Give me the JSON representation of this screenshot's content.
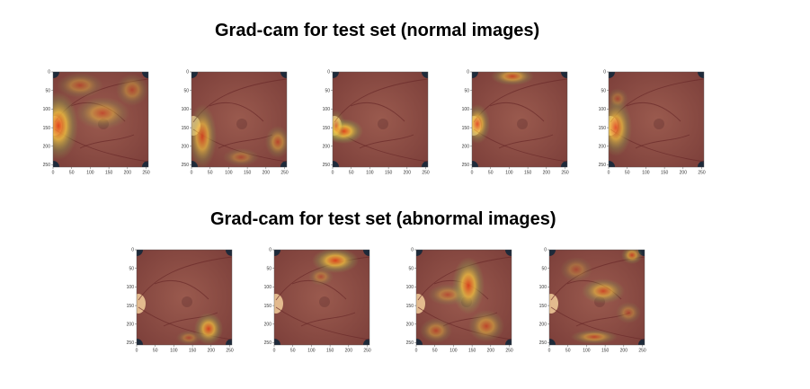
{
  "sections": [
    {
      "title": "Grad-cam for test set (normal images)",
      "panels": [
        {
          "heat": [
            {
              "cx": 6,
              "cy": 60,
              "rx": 22,
              "ry": 38,
              "a": 0.95
            },
            {
              "cx": 55,
              "cy": 46,
              "rx": 30,
              "ry": 18,
              "a": 0.55
            },
            {
              "cx": 88,
              "cy": 20,
              "rx": 18,
              "ry": 18,
              "a": 0.45
            },
            {
              "cx": 30,
              "cy": 15,
              "rx": 26,
              "ry": 14,
              "a": 0.45
            }
          ]
        },
        {
          "heat": [
            {
              "cx": 12,
              "cy": 72,
              "rx": 16,
              "ry": 36,
              "a": 0.8
            },
            {
              "cx": 96,
              "cy": 78,
              "rx": 14,
              "ry": 18,
              "a": 0.55
            },
            {
              "cx": 55,
              "cy": 95,
              "rx": 20,
              "ry": 10,
              "a": 0.4
            }
          ]
        },
        {
          "heat": [
            {
              "cx": 12,
              "cy": 66,
              "rx": 22,
              "ry": 14,
              "a": 1.0
            },
            {
              "cx": 4,
              "cy": 60,
              "rx": 10,
              "ry": 18,
              "a": 0.6
            }
          ]
        },
        {
          "heat": [
            {
              "cx": 6,
              "cy": 58,
              "rx": 14,
              "ry": 22,
              "a": 0.85
            },
            {
              "cx": 45,
              "cy": 5,
              "rx": 24,
              "ry": 10,
              "a": 0.7
            }
          ]
        },
        {
          "heat": [
            {
              "cx": 8,
              "cy": 62,
              "rx": 18,
              "ry": 32,
              "a": 0.85
            },
            {
              "cx": 10,
              "cy": 30,
              "rx": 12,
              "ry": 12,
              "a": 0.35
            }
          ]
        }
      ]
    },
    {
      "title": "Grad-cam for test set (abnormal images)",
      "panels": [
        {
          "heat": [
            {
              "cx": 80,
              "cy": 88,
              "rx": 16,
              "ry": 18,
              "a": 0.85
            },
            {
              "cx": 58,
              "cy": 98,
              "rx": 14,
              "ry": 8,
              "a": 0.4
            }
          ]
        },
        {
          "heat": [
            {
              "cx": 68,
              "cy": 12,
              "rx": 26,
              "ry": 14,
              "a": 0.9
            },
            {
              "cx": 52,
              "cy": 30,
              "rx": 14,
              "ry": 10,
              "a": 0.4
            }
          ]
        },
        {
          "heat": [
            {
              "cx": 58,
              "cy": 40,
              "rx": 18,
              "ry": 32,
              "a": 0.9
            },
            {
              "cx": 35,
              "cy": 50,
              "rx": 22,
              "ry": 12,
              "a": 0.45
            },
            {
              "cx": 78,
              "cy": 85,
              "rx": 20,
              "ry": 18,
              "a": 0.6
            },
            {
              "cx": 22,
              "cy": 90,
              "rx": 18,
              "ry": 14,
              "a": 0.5
            }
          ]
        },
        {
          "heat": [
            {
              "cx": 60,
              "cy": 46,
              "rx": 24,
              "ry": 14,
              "a": 0.7
            },
            {
              "cx": 92,
              "cy": 6,
              "rx": 12,
              "ry": 10,
              "a": 0.7
            },
            {
              "cx": 50,
              "cy": 97,
              "rx": 26,
              "ry": 8,
              "a": 0.6
            },
            {
              "cx": 30,
              "cy": 22,
              "rx": 18,
              "ry": 14,
              "a": 0.35
            },
            {
              "cx": 88,
              "cy": 70,
              "rx": 14,
              "ry": 12,
              "a": 0.4
            }
          ]
        }
      ]
    }
  ],
  "axis": {
    "y_ticks": [
      "0",
      "50",
      "100",
      "150",
      "200",
      "250"
    ],
    "x_ticks": [
      "0",
      "50",
      "100",
      "150",
      "200",
      "250"
    ]
  },
  "colors": {
    "fundus_center": "#9a5a4e",
    "fundus_edge": "#7c3f3a",
    "optic_disc": "#f3cf9c",
    "heat_core": "#e0401a",
    "heat_mid": "#f0c040",
    "heat_edge": "#8aa050"
  }
}
